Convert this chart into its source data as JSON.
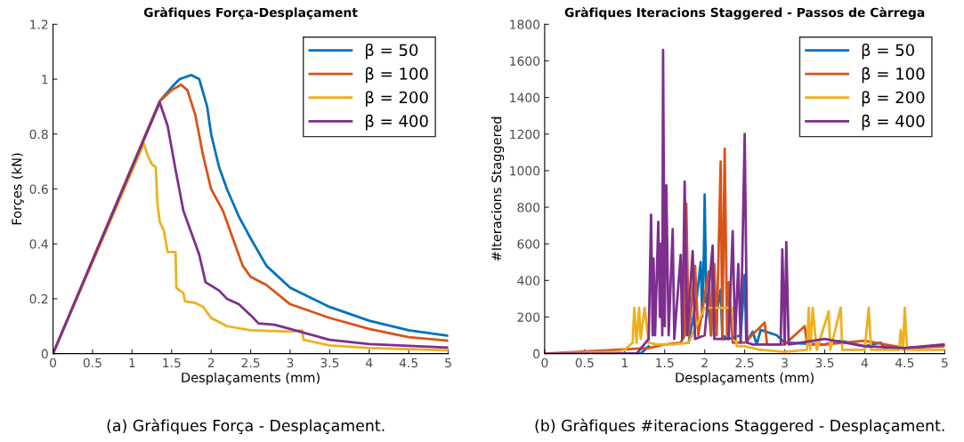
{
  "chart_data": [
    {
      "type": "line",
      "title": "Gràfiques Força-Desplaçament",
      "xlabel": "Desplaçaments (mm)",
      "ylabel": "Forçes (kN)",
      "xlim": [
        0,
        5
      ],
      "ylim": [
        0,
        1.2
      ],
      "xticks": [
        0,
        0.5,
        1,
        1.5,
        2,
        2.5,
        3,
        3.5,
        4,
        4.5,
        5
      ],
      "yticks": [
        0,
        0.2,
        0.4,
        0.6,
        0.8,
        1,
        1.2
      ],
      "grid": false,
      "legend": "top right",
      "annotations": [
        "(a) Gràfiques Força - Desplaçament."
      ],
      "series": [
        {
          "name": "β = 50",
          "color": "#0072bd",
          "x": [
            0,
            1.35,
            1.5,
            1.6,
            1.75,
            1.85,
            1.95,
            2.0,
            2.1,
            2.2,
            2.35,
            2.5,
            2.7,
            3.0,
            3.5,
            4.0,
            4.5,
            5
          ],
          "values": [
            0,
            0.92,
            0.97,
            1.0,
            1.015,
            1.0,
            0.9,
            0.8,
            0.68,
            0.6,
            0.5,
            0.42,
            0.32,
            0.24,
            0.17,
            0.12,
            0.085,
            0.065
          ]
        },
        {
          "name": "β = 100",
          "color": "#d95319",
          "x": [
            0,
            1.35,
            1.5,
            1.62,
            1.7,
            1.8,
            1.9,
            2.0,
            2.15,
            2.3,
            2.4,
            2.5,
            2.7,
            3.0,
            3.5,
            4.0,
            4.5,
            5
          ],
          "values": [
            0,
            0.92,
            0.96,
            0.98,
            0.96,
            0.87,
            0.72,
            0.6,
            0.52,
            0.4,
            0.32,
            0.28,
            0.25,
            0.18,
            0.13,
            0.09,
            0.06,
            0.047
          ]
        },
        {
          "name": "β = 200",
          "color": "#edb120",
          "x": [
            0,
            1.15,
            1.2,
            1.25,
            1.3,
            1.32,
            1.35,
            1.4,
            1.45,
            1.55,
            1.56,
            1.65,
            1.67,
            1.8,
            1.9,
            2.0,
            2.2,
            2.5,
            3.0,
            3.15,
            3.17,
            3.5,
            4.0,
            5
          ],
          "values": [
            0,
            0.765,
            0.72,
            0.69,
            0.68,
            0.55,
            0.48,
            0.45,
            0.37,
            0.37,
            0.24,
            0.22,
            0.19,
            0.185,
            0.17,
            0.13,
            0.1,
            0.085,
            0.08,
            0.085,
            0.05,
            0.03,
            0.02,
            0.012
          ]
        },
        {
          "name": "β = 400",
          "color": "#7e2f8e",
          "x": [
            0,
            1.35,
            1.45,
            1.55,
            1.65,
            1.75,
            1.85,
            1.93,
            2.1,
            2.2,
            2.35,
            2.5,
            2.6,
            2.8,
            3.0,
            3.5,
            4.0,
            5
          ],
          "values": [
            0,
            0.915,
            0.83,
            0.67,
            0.52,
            0.44,
            0.36,
            0.26,
            0.23,
            0.2,
            0.18,
            0.14,
            0.11,
            0.105,
            0.09,
            0.05,
            0.035,
            0.022
          ]
        }
      ]
    },
    {
      "type": "line",
      "title": "Gràfiques Iteracions Staggered - Passos de Càrrega",
      "xlabel": "Desplaçaments (mm)",
      "ylabel": "#Iteracions Staggered",
      "xlim": [
        0,
        5
      ],
      "ylim": [
        0,
        1800
      ],
      "xticks": [
        0,
        0.5,
        1,
        1.5,
        2,
        2.5,
        3,
        3.5,
        4,
        4.5,
        5
      ],
      "yticks": [
        0,
        200,
        400,
        600,
        800,
        1000,
        1200,
        1400,
        1600,
        1800
      ],
      "grid": false,
      "legend": "top right",
      "annotations": [
        "(b) Gràfiques #iteracions Staggered - Desplaçament."
      ],
      "series": [
        {
          "name": "β = 50",
          "color": "#0072bd",
          "x": [
            0,
            1.2,
            1.3,
            1.5,
            1.8,
            1.9,
            1.95,
            1.97,
            1.99,
            2.0,
            2.02,
            2.05,
            2.08,
            2.1,
            2.12,
            2.2,
            2.22,
            2.3,
            2.45,
            2.5,
            2.52,
            2.6,
            2.65,
            2.7,
            2.9,
            3.0,
            3.5,
            3.7,
            4.0,
            4.2,
            4.25,
            4.5,
            5.0
          ],
          "values": [
            0,
            0,
            40,
            null,
            60,
            300,
            500,
            200,
            560,
            870,
            280,
            250,
            100,
            470,
            150,
            350,
            100,
            80,
            100,
            430,
            60,
            120,
            50,
            130,
            100,
            60,
            50,
            70,
            40,
            60,
            30,
            30,
            45
          ]
        },
        {
          "name": "β = 100",
          "color": "#d95319",
          "x": [
            0,
            1.3,
            1.5,
            1.7,
            1.75,
            1.77,
            1.8,
            1.88,
            1.92,
            2.05,
            2.08,
            2.12,
            2.15,
            2.2,
            2.22,
            2.25,
            2.28,
            2.3,
            2.35,
            2.5,
            2.75,
            2.78,
            3.0,
            3.25,
            3.28,
            3.5,
            4.0,
            4.5,
            5.0
          ],
          "values": [
            0,
            30,
            50,
            60,
            100,
            820,
            100,
            480,
            100,
            450,
            100,
            490,
            100,
            1050,
            80,
            1120,
            100,
            390,
            60,
            60,
            170,
            50,
            50,
            150,
            50,
            50,
            70,
            30,
            40
          ]
        },
        {
          "name": "β = 200",
          "color": "#edb120",
          "x": [
            0,
            0.9,
            1.0,
            1.1,
            1.12,
            1.15,
            1.18,
            1.2,
            1.25,
            1.3,
            1.4,
            1.6,
            1.8,
            2.0,
            2.2,
            2.35,
            2.4,
            2.5,
            2.7,
            3.0,
            3.28,
            3.3,
            3.32,
            3.35,
            3.4,
            3.55,
            3.57,
            3.7,
            3.72,
            4.0,
            4.05,
            4.08,
            4.43,
            4.45,
            4.48,
            4.5,
            4.53,
            5.0
          ],
          "values": [
            0,
            10,
            20,
            60,
            250,
            60,
            250,
            80,
            250,
            60,
            50,
            50,
            60,
            250,
            250,
            250,
            40,
            40,
            20,
            10,
            20,
            250,
            20,
            250,
            20,
            230,
            20,
            250,
            20,
            20,
            250,
            20,
            20,
            130,
            20,
            250,
            20,
            20
          ]
        },
        {
          "name": "β = 400",
          "color": "#7e2f8e",
          "x": [
            0,
            1.15,
            1.3,
            1.33,
            1.35,
            1.36,
            1.38,
            1.42,
            1.44,
            1.45,
            1.47,
            1.48,
            1.5,
            1.52,
            1.55,
            1.6,
            1.62,
            1.7,
            1.72,
            1.75,
            1.78,
            1.85,
            1.88,
            2.0,
            2.1,
            2.12,
            2.3,
            2.35,
            2.38,
            2.42,
            2.45,
            2.5,
            2.53,
            2.6,
            2.95,
            2.97,
            3.0,
            3.02,
            3.05,
            3.5,
            4.0,
            4.5,
            5.0
          ],
          "values": [
            0,
            0,
            80,
            760,
            100,
            520,
            100,
            720,
            200,
            600,
            100,
            1660,
            150,
            920,
            100,
            680,
            80,
            540,
            80,
            940,
            100,
            560,
            80,
            100,
            590,
            80,
            80,
            670,
            80,
            490,
            60,
            1200,
            60,
            50,
            50,
            570,
            50,
            610,
            50,
            80,
            40,
            30,
            50
          ]
        }
      ]
    }
  ]
}
